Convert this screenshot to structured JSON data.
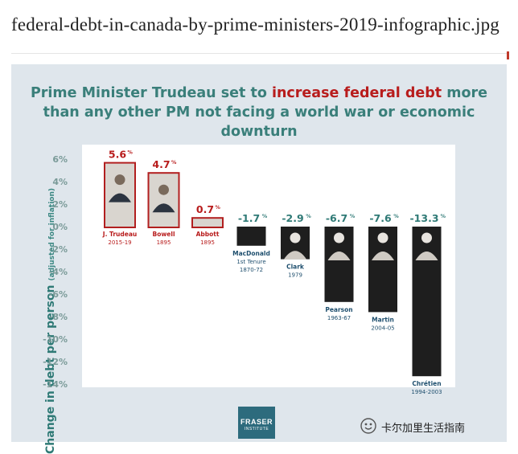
{
  "file_title": "federal-debt-in-canada-by-prime-ministers-2019-infographic.jpg",
  "headline": {
    "pre": "Prime Minister Trudeau set to ",
    "highlight": "increase federal debt",
    "post": " more than any other PM not facing a world war or economic downturn"
  },
  "logo": {
    "line1": "FRASER",
    "line2": "INSTITUTE"
  },
  "watermark": "卡尔加里生活指南",
  "colors": {
    "positive_label": "#b81c1c",
    "negative_label": "#2f7a76",
    "positive_frame": "#b21f1f",
    "tick": "#7a9a98",
    "accent_teal": "#3a7f7a"
  },
  "chart_data": {
    "type": "bar",
    "ylabel": "Change in debt per person",
    "ylabel_note": "(adjusted for inflation)",
    "ylim": [
      -14,
      6
    ],
    "yticks": [
      6,
      4,
      2,
      0,
      -2,
      -4,
      -6,
      -8,
      -10,
      -12,
      -14
    ],
    "ytick_labels": [
      "6%",
      "4%",
      "2%",
      "0%",
      "-2%",
      "-4%",
      "-6%",
      "-8%",
      "-10%",
      "-12%",
      "-14%"
    ],
    "grid": false,
    "bars": [
      {
        "name": "J. Trudeau",
        "term": "2015-19",
        "value": 5.6,
        "label": "5.6"
      },
      {
        "name": "Bowell",
        "term": "1895",
        "value": 4.7,
        "label": "4.7"
      },
      {
        "name": "Abbott",
        "term": "1895",
        "value": 0.7,
        "label": "0.7"
      },
      {
        "name": "MacDonald",
        "term2": "1st Tenure",
        "term": "1870-72",
        "value": -1.7,
        "label": "-1.7"
      },
      {
        "name": "Clark",
        "term": "1979",
        "value": -2.9,
        "label": "-2.9"
      },
      {
        "name": "Pearson",
        "term": "1963-67",
        "value": -6.7,
        "label": "-6.7"
      },
      {
        "name": "Martin",
        "term": "2004-05",
        "value": -7.6,
        "label": "-7.6"
      },
      {
        "name": "Chrétien",
        "term": "1994-2003",
        "value": -13.3,
        "label": "-13.3"
      }
    ],
    "unit": "%"
  }
}
